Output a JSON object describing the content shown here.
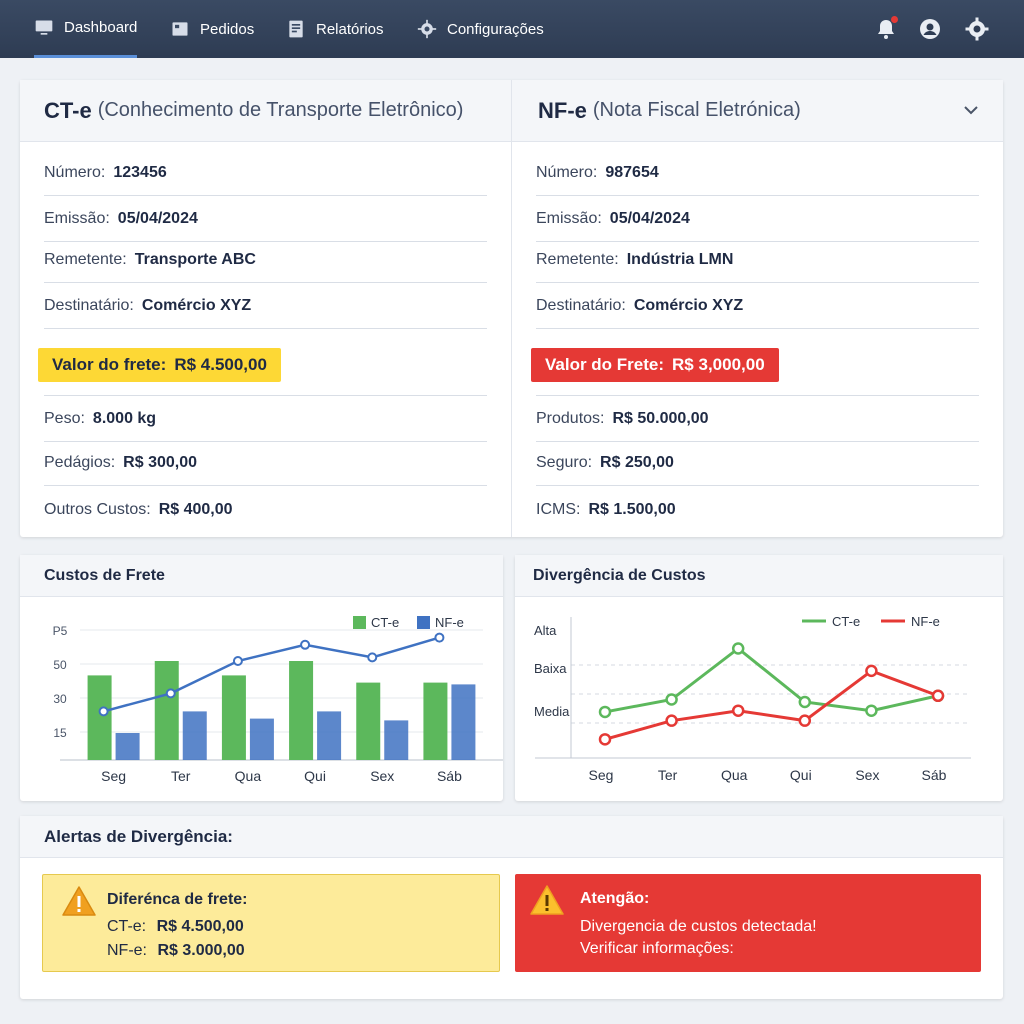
{
  "nav": {
    "items": [
      {
        "label": "Dashboard",
        "icon": "monitor-icon"
      },
      {
        "label": "Pedidos",
        "icon": "box-icon"
      },
      {
        "label": "Relatórios",
        "icon": "report-icon"
      },
      {
        "label": "Configurações",
        "icon": "gear-icon"
      }
    ],
    "right_icons": [
      "bell-icon",
      "user-icon",
      "gear-icon"
    ]
  },
  "cte": {
    "title": "CT-e",
    "subtitle": "(Conhecimento de Transporte Eletrônico)",
    "fields": [
      {
        "label": "Número:",
        "value": "123456"
      },
      {
        "label": "Emissão:",
        "value": "05/04/2024"
      },
      {
        "label": "Remetente:",
        "value": "Transporte ABC"
      },
      {
        "label": "Destinatário:",
        "value": "Comércio XYZ"
      }
    ],
    "highlight": {
      "label": "Valor do frete:",
      "value": "R$ 4.500,00",
      "color": "#fdd835"
    },
    "extra": [
      {
        "label": "Peso:",
        "value": "8.000 kg"
      },
      {
        "label": "Pedágios:",
        "value": "R$ 300,00"
      },
      {
        "label": "Outros Custos:",
        "value": "R$ 400,00"
      }
    ]
  },
  "nfe": {
    "title": "NF-e",
    "subtitle": "(Nota Fiscal Eletrónica)",
    "fields": [
      {
        "label": "Número:",
        "value": "987654"
      },
      {
        "label": "Emissão:",
        "value": "05/04/2024"
      },
      {
        "label": "Remetente:",
        "value": "Indústria LMN"
      },
      {
        "label": "Destinatário:",
        "value": "Comércio XYZ"
      }
    ],
    "highlight": {
      "label": "Valor do Frete:",
      "value": "R$ 3,000,00",
      "color": "#e53935"
    },
    "extra": [
      {
        "label": "Produtos:",
        "value": "R$ 50.000,00"
      },
      {
        "label": "Seguro:",
        "value": "R$ 250,00"
      },
      {
        "label": "ICMS:",
        "value": "R$ 1.500,00"
      }
    ]
  },
  "chart1": {
    "title": "Custos de Frete",
    "chart_data": {
      "type": "bar",
      "categories": [
        "Seg",
        "Ter",
        "Qua",
        "Qui",
        "Sex",
        "Sáb"
      ],
      "yticks": [
        "P5",
        "50",
        "30",
        "15"
      ],
      "series": [
        {
          "name": "CT-e",
          "color": "#5cb85c",
          "values": [
            47,
            55,
            47,
            55,
            43,
            43
          ]
        },
        {
          "name": "NF-e",
          "color": "#3f72c2",
          "values": [
            15,
            27,
            23,
            27,
            22,
            42
          ]
        }
      ],
      "line": {
        "color": "#3f72c2",
        "values": [
          27,
          37,
          55,
          64,
          57,
          68
        ]
      }
    }
  },
  "chart2": {
    "title": "Divergência de Custos",
    "chart_data": {
      "type": "line",
      "categories": [
        "Seg",
        "Ter",
        "Qua",
        "Qui",
        "Sex",
        "Sáb"
      ],
      "yticks": [
        "Alta",
        "Baixa",
        "Media"
      ],
      "series": [
        {
          "name": "CT-e",
          "color": "#5cb85c",
          "values": [
            0.37,
            0.47,
            0.88,
            0.45,
            0.38,
            0.5
          ]
        },
        {
          "name": "NF-e",
          "color": "#e53935",
          "values": [
            0.15,
            0.3,
            0.38,
            0.3,
            0.7,
            0.5
          ]
        }
      ]
    }
  },
  "alerts": {
    "title": "Alertas de Divergência:",
    "yellow": {
      "heading": "Diferénca de frete:",
      "lines": [
        {
          "label": "CT-e:",
          "value": "R$ 4.500,00"
        },
        {
          "label": "NF-e:",
          "value": "R$ 3.000,00"
        }
      ],
      "color": "#fdeb9a"
    },
    "red": {
      "heading": "Atengão:",
      "line1": "Divergencia de custos detectada!",
      "line2": "Verificar informações:",
      "color": "#e53935"
    }
  }
}
